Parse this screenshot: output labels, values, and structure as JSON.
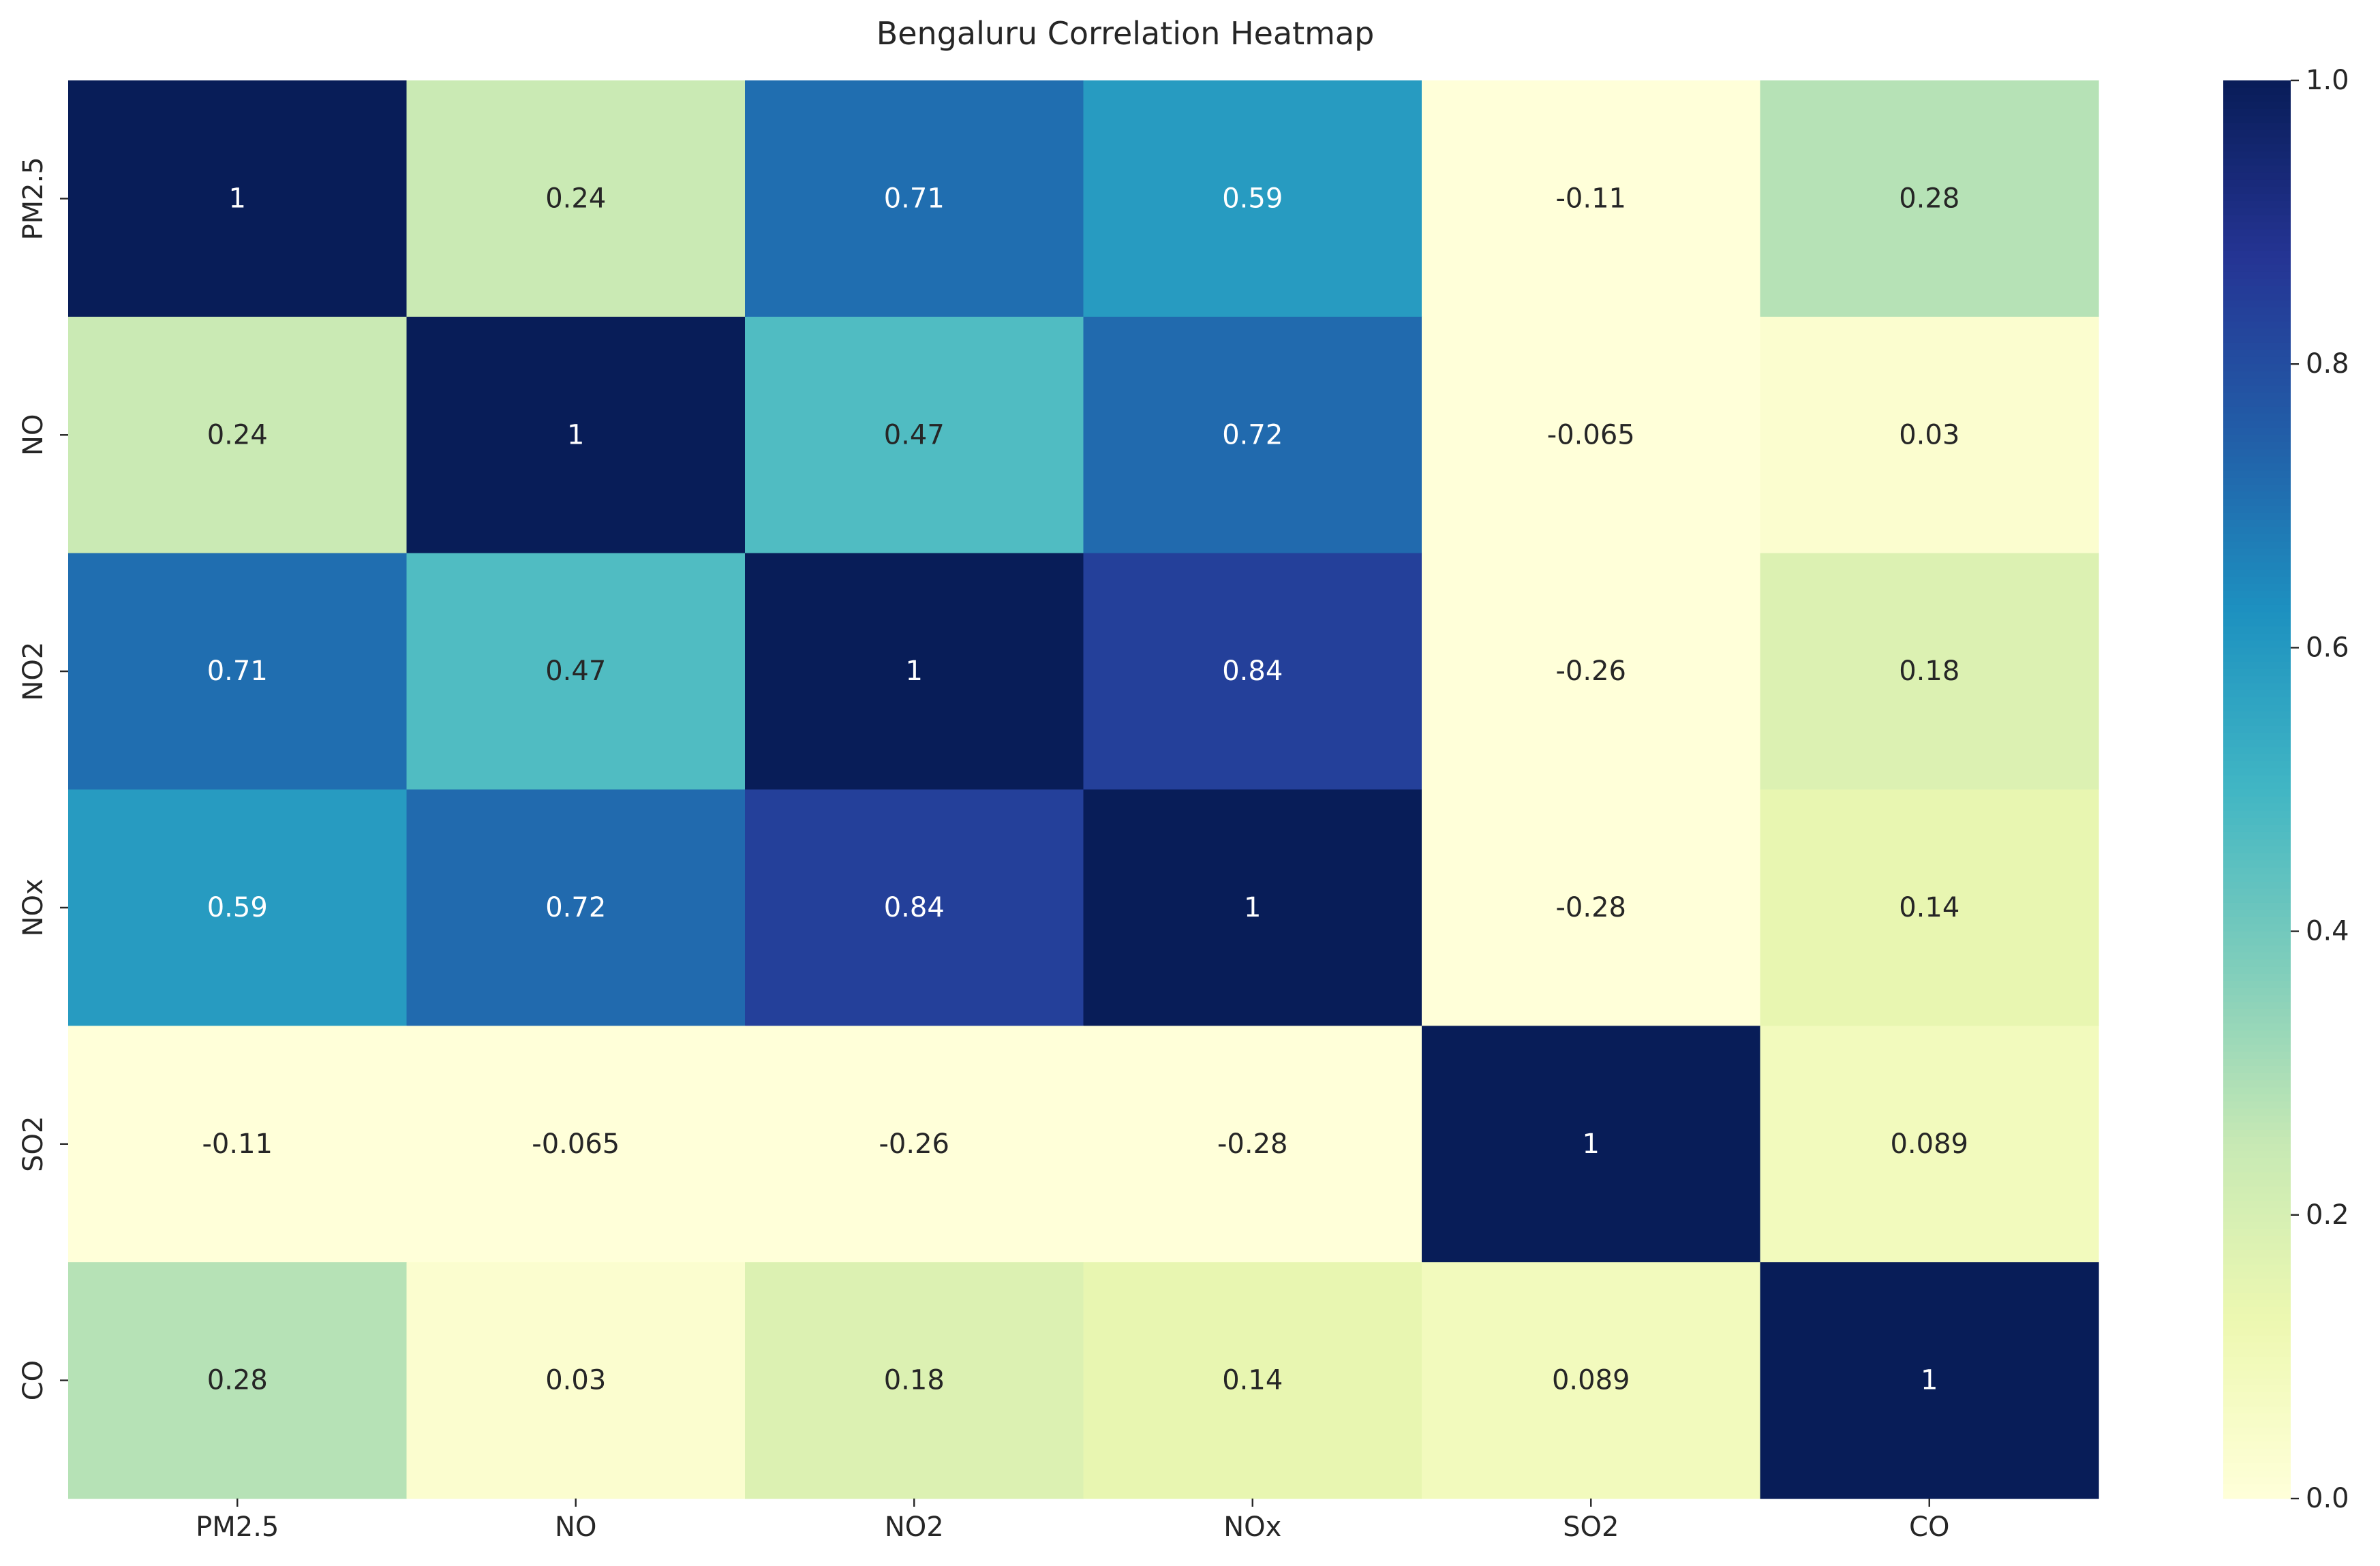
{
  "chart_data": {
    "type": "heatmap",
    "title": "Bengaluru Correlation Heatmap",
    "xlabel": "",
    "ylabel": "",
    "x_categories": [
      "PM2.5",
      "NO",
      "NO2",
      "NOx",
      "SO2",
      "CO"
    ],
    "y_categories": [
      "PM2.5",
      "NO",
      "NO2",
      "NOx",
      "SO2",
      "CO"
    ],
    "values": [
      [
        1,
        0.24,
        0.71,
        0.59,
        -0.11,
        0.28
      ],
      [
        0.24,
        1,
        0.47,
        0.72,
        -0.065,
        0.03
      ],
      [
        0.71,
        0.47,
        1,
        0.84,
        -0.26,
        0.18
      ],
      [
        0.59,
        0.72,
        0.84,
        1,
        -0.28,
        0.14
      ],
      [
        -0.11,
        -0.065,
        -0.26,
        -0.28,
        1,
        0.089
      ],
      [
        0.28,
        0.03,
        0.18,
        0.14,
        0.089,
        1
      ]
    ],
    "annotations": [
      [
        "1",
        "0.24",
        "0.71",
        "0.59",
        "-0.11",
        "0.28"
      ],
      [
        "0.24",
        "1",
        "0.47",
        "0.72",
        "-0.065",
        "0.03"
      ],
      [
        "0.71",
        "0.47",
        "1",
        "0.84",
        "-0.26",
        "0.18"
      ],
      [
        "0.59",
        "0.72",
        "0.84",
        "1",
        "-0.28",
        "0.14"
      ],
      [
        "-0.11",
        "-0.065",
        "-0.26",
        "-0.28",
        "1",
        "0.089"
      ],
      [
        "0.28",
        "0.03",
        "0.18",
        "0.14",
        "0.089",
        "1"
      ]
    ],
    "colorbar": {
      "range": [
        0.0,
        1.0
      ],
      "ticks": [
        "0.0",
        "0.2",
        "0.4",
        "0.6",
        "0.8",
        "1.0"
      ],
      "colormap": "YlGnBu",
      "colors": [
        "#ffffd9",
        "#edf8b1",
        "#c7e9b4",
        "#7fcdbb",
        "#41b6c4",
        "#1d91c0",
        "#225ea8",
        "#253494",
        "#081d58"
      ]
    },
    "grid": false,
    "legend": "colorbar-right"
  }
}
